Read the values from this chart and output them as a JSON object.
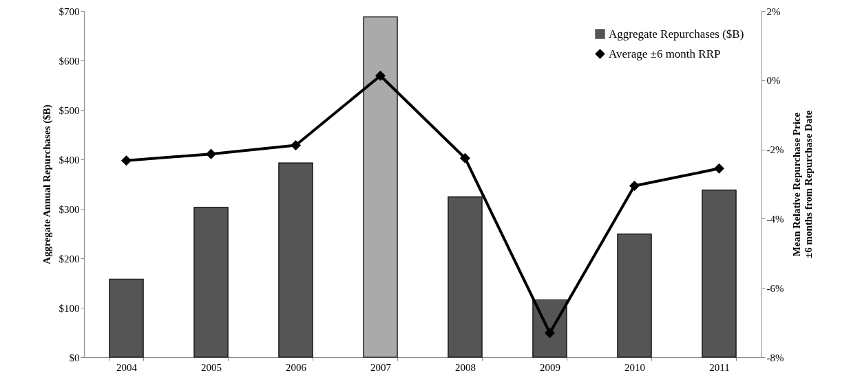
{
  "chart_data": {
    "type": "bar",
    "categories": [
      "2004",
      "2005",
      "2006",
      "2007",
      "2008",
      "2009",
      "2010",
      "2011"
    ],
    "ylabel": "Aggregate Annual Repurchases ($B)",
    "y2label": "Mean Relative Repurchase Price\n±6 months  from Repurchase Date",
    "ylim": [
      0,
      700
    ],
    "yticks": [
      {
        "value": 0,
        "label": "$0"
      },
      {
        "value": 100,
        "label": "$100"
      },
      {
        "value": 200,
        "label": "$200"
      },
      {
        "value": 300,
        "label": "$300"
      },
      {
        "value": 400,
        "label": "$400"
      },
      {
        "value": 500,
        "label": "$500"
      },
      {
        "value": 600,
        "label": "$600"
      },
      {
        "value": 700,
        "label": "$700"
      }
    ],
    "y2lim": [
      -8,
      2
    ],
    "y2ticks": [
      {
        "value": -8,
        "label": "-8%"
      },
      {
        "value": -6,
        "label": "-6%"
      },
      {
        "value": -4,
        "label": "-4%"
      },
      {
        "value": -2,
        "label": "-2%"
      },
      {
        "value": 0,
        "label": "0%"
      },
      {
        "value": 2,
        "label": "2%"
      }
    ],
    "legend": "top right",
    "grid": false,
    "series": [
      {
        "name": "Aggregate Repurchases ($B)",
        "color": "#555555",
        "colors": [
          "#555555",
          "#555555",
          "#555555",
          "#aaaaaa",
          "#555555",
          "#555555",
          "#555555",
          "#555555"
        ],
        "values": [
          158,
          303,
          393,
          688,
          324,
          116,
          249,
          338
        ]
      },
      {
        "name": "Average ±6 month RRP",
        "type": "line",
        "axis": "y2",
        "color": "#000000",
        "marker": "diamond",
        "line_style": "solid",
        "values": [
          -2.32,
          -2.13,
          -1.88,
          0.13,
          -2.25,
          -7.3,
          -3.05,
          -2.55
        ]
      }
    ]
  }
}
